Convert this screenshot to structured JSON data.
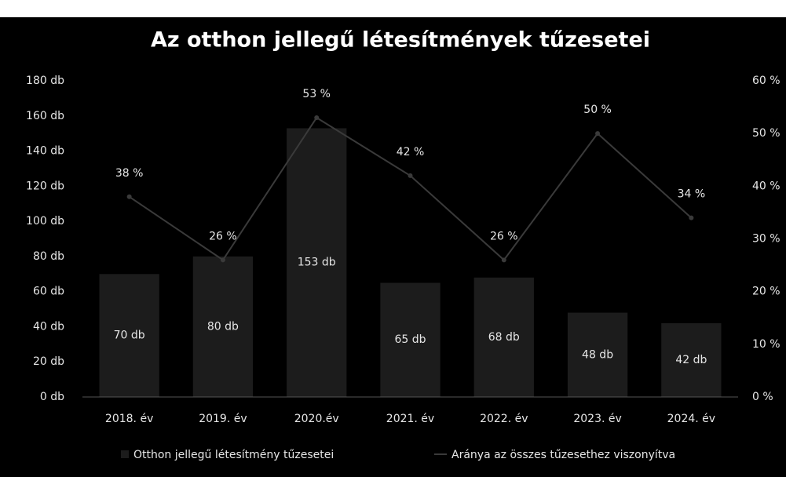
{
  "chart_data": {
    "type": "bar_line",
    "title": "Az otthon jellegű létesítmények tűzesetei",
    "categories": [
      "2018. év",
      "2019. év",
      "2020.év",
      "2021. év",
      "2022. év",
      "2023. év",
      "2024. év"
    ],
    "series": [
      {
        "name": "Otthon jellegű létesítmény tűzesetei",
        "type": "bar",
        "color": "#1c1c1c",
        "values": [
          70,
          80,
          153,
          65,
          68,
          48,
          42
        ],
        "value_labels": [
          "70 db",
          "80 db",
          "153 db",
          "65 db",
          "68 db",
          "48 db",
          "42 db"
        ]
      },
      {
        "name": "Aránya az összes tűzesethez viszonyítva",
        "type": "line",
        "axis": "y2",
        "color": "#3a3a3a",
        "values": [
          38,
          26,
          53,
          42,
          26,
          50,
          34
        ],
        "value_labels": [
          "38 %",
          "26 %",
          "53 %",
          "42 %",
          "26 %",
          "50 %",
          "34 %"
        ]
      }
    ],
    "ylim": [
      0,
      180
    ],
    "yticks": [
      {
        "value": 0,
        "label": "0 db"
      },
      {
        "value": 20,
        "label": "20 db"
      },
      {
        "value": 40,
        "label": "40 db"
      },
      {
        "value": 60,
        "label": "60 db"
      },
      {
        "value": 80,
        "label": "80 db"
      },
      {
        "value": 100,
        "label": "100 db"
      },
      {
        "value": 120,
        "label": "120 db"
      },
      {
        "value": 140,
        "label": "140 db"
      },
      {
        "value": 160,
        "label": "160 db"
      },
      {
        "value": 180,
        "label": "180 db"
      }
    ],
    "y2lim": [
      0,
      60
    ],
    "y2ticks": [
      {
        "value": 0,
        "label": "0 %"
      },
      {
        "value": 10,
        "label": "10 %"
      },
      {
        "value": 20,
        "label": "20 %"
      },
      {
        "value": 30,
        "label": "30 %"
      },
      {
        "value": 40,
        "label": "40 %"
      },
      {
        "value": 50,
        "label": "50 %"
      },
      {
        "value": 60,
        "label": "60 %"
      }
    ],
    "legend": "bottom"
  }
}
